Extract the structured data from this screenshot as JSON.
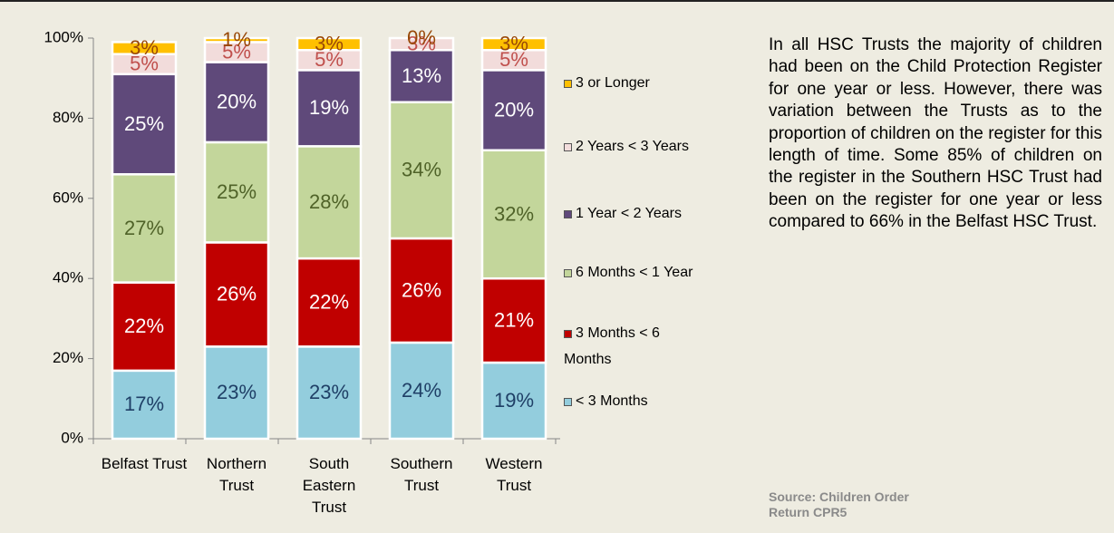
{
  "chart_data": {
    "type": "stacked_bar",
    "categories": [
      "Belfast Trust",
      "Northern Trust",
      "South Eastern Trust",
      "Southern Trust",
      "Western Trust"
    ],
    "series": [
      {
        "name": "< 3 Months",
        "color": "#93cddd",
        "label_color": "#1f3f66",
        "values": [
          17,
          23,
          23,
          24,
          19
        ],
        "value_labels": [
          "17%",
          "23%",
          "23%",
          "24%",
          "19%"
        ]
      },
      {
        "name": "3 Months < 6 Months",
        "color": "#c00000",
        "label_color": "#ffffff",
        "values": [
          22,
          26,
          22,
          26,
          21
        ],
        "value_labels": [
          "22%",
          "26%",
          "22%",
          "26%",
          "21%"
        ]
      },
      {
        "name": "6 Months < 1 Year",
        "color": "#c3d69b",
        "label_color": "#4f6228",
        "values": [
          27,
          25,
          28,
          34,
          32
        ],
        "value_labels": [
          "27%",
          "25%",
          "28%",
          "34%",
          "32%"
        ]
      },
      {
        "name": "1 Year < 2 Years",
        "color": "#5f497a",
        "label_color": "#ffffff",
        "values": [
          25,
          20,
          19,
          13,
          20
        ],
        "value_labels": [
          "25%",
          "20%",
          "19%",
          "13%",
          "20%"
        ]
      },
      {
        "name": "2 Years < 3 Years",
        "color": "#f2dcdb",
        "label_color": "#c0504d",
        "values": [
          5,
          5,
          5,
          3,
          5
        ],
        "value_labels": [
          "5%",
          "5%",
          "5%",
          "3%",
          "5%"
        ]
      },
      {
        "name": "3 or Longer",
        "color": "#ffc000",
        "label_color": "#984807",
        "values": [
          3,
          1,
          3,
          0,
          3
        ],
        "value_labels": [
          "3%",
          "1%",
          "3%",
          "0%",
          "3%"
        ]
      }
    ],
    "ylim": [
      0,
      100
    ],
    "yticks": [
      {
        "value": 0,
        "label": "0%"
      },
      {
        "value": 20,
        "label": "20%"
      },
      {
        "value": 40,
        "label": "40%"
      },
      {
        "value": 60,
        "label": "60%"
      },
      {
        "value": 80,
        "label": "80%"
      },
      {
        "value": 100,
        "label": "100%"
      }
    ],
    "legend": "right",
    "note": "In all HSC Trusts the majority of children had been on the Child Protection Register for one year or less. However, there was variation between the Trusts as to the proportion of children on the register for this length of time. Some 85% of children on the register in the Southern HSC Trust had been on the register for one year or less compared to 66% in the Belfast HSC Trust.",
    "source": "Source: Children Order Return CPR5"
  }
}
